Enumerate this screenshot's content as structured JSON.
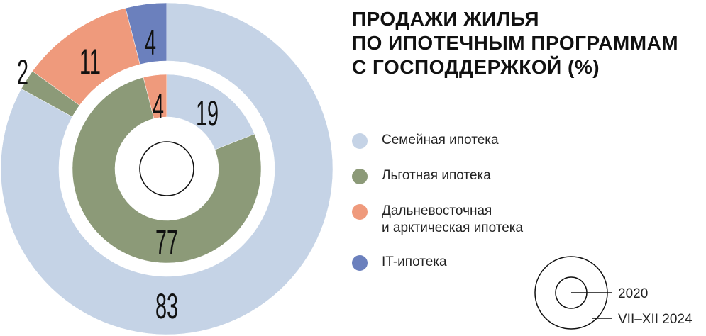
{
  "title_lines": [
    "ПРОДАЖИ ЖИЛЬЯ",
    "ПО ИПОТЕЧНЫМ ПРОГРАММАМ",
    "С ГОСПОДДЕРЖКОЙ (%)"
  ],
  "colors": {
    "family": "#c5d3e6",
    "preferential": "#8c9a78",
    "fareast": "#ef9a7c",
    "it": "#6b80bd",
    "text": "#111111"
  },
  "chart_data": {
    "type": "pie",
    "title": "ПРОДАЖИ ЖИЛЬЯ ПО ИПОТЕЧНЫМ ПРОГРАММАМ С ГОСПОДДЕРЖКОЙ (%)",
    "categories": [
      "Семейная ипотека",
      "Льготная ипотека",
      "Дальневосточная и арктическая ипотека",
      "IT-ипотека"
    ],
    "series": [
      {
        "name": "2020",
        "ring": "inner",
        "values": [
          19,
          77,
          4,
          0
        ]
      },
      {
        "name": "VII–XII 2024",
        "ring": "outer",
        "values": [
          83,
          2,
          11,
          4
        ]
      }
    ],
    "legend_position": "right"
  },
  "legend": [
    {
      "label": "Семейная ипотека",
      "color_key": "family"
    },
    {
      "label": "Льготная ипотека",
      "color_key": "preferential"
    },
    {
      "label": "Дальневосточная\nи арктическая ипотека",
      "color_key": "fareast"
    },
    {
      "label": "IT-ипотека",
      "color_key": "it"
    }
  ],
  "ring_key": {
    "inner_label": "2020",
    "outer_label": "VII–XII 2024"
  }
}
